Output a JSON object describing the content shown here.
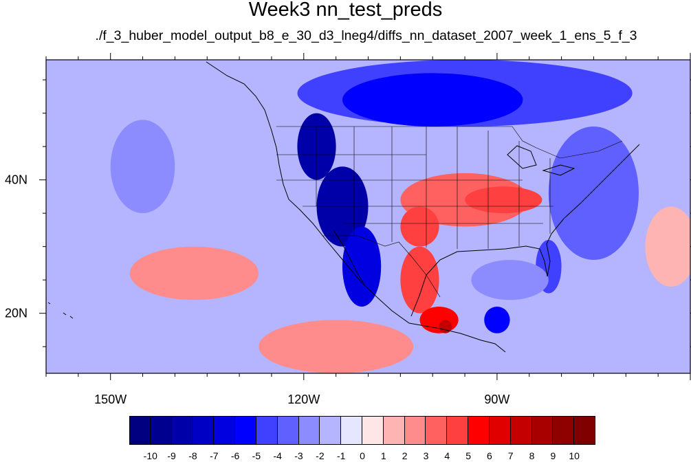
{
  "title": "Week3 nn_test_preds",
  "subtitle": "./f_3_huber_model_output_b8_e_30_d3_lneg4/diffs_nn_dataset_2007_week_1_ens_5_f_3",
  "map": {
    "projection": "cylindrical-equidistant",
    "lon_range": [
      -160,
      -60
    ],
    "lat_range": [
      11,
      58
    ],
    "background_level": -1,
    "x_tick_labels": [
      "150W",
      "120W",
      "90W"
    ],
    "y_tick_labels": [
      "40N",
      "20N"
    ],
    "regions": [
      {
        "name": "northeast-pacific-negative",
        "level": -2,
        "lon": -145,
        "lat": 42,
        "rx": 5,
        "ry": 7
      },
      {
        "name": "canada-negative",
        "level": -4,
        "lon": -95,
        "lat": 53,
        "rx": 26,
        "ry": 5
      },
      {
        "name": "hudson-negative",
        "level": -5,
        "lon": -100,
        "lat": 52,
        "rx": 14,
        "ry": 4
      },
      {
        "name": "east-coast-negative",
        "level": -3,
        "lon": -75,
        "lat": 38,
        "rx": 7,
        "ry": 10
      },
      {
        "name": "florida-negative",
        "level": -4,
        "lon": -82,
        "lat": 27,
        "rx": 2,
        "ry": 4
      },
      {
        "name": "gulf-negative",
        "level": -2,
        "lon": -88,
        "lat": 25,
        "rx": 6,
        "ry": 3
      },
      {
        "name": "caribbean-negative",
        "level": -5,
        "lon": -90,
        "lat": 19,
        "rx": 2,
        "ry": 2
      },
      {
        "name": "central-pacific-positive",
        "level": 2,
        "lon": -137,
        "lat": 26,
        "rx": 10,
        "ry": 4
      },
      {
        "name": "eastern-pacific-positive",
        "level": 2,
        "lon": -115,
        "lat": 15,
        "rx": 12,
        "ry": 4
      },
      {
        "name": "atlantic-positive",
        "level": 1,
        "lon": -63,
        "lat": 30,
        "rx": 4,
        "ry": 6
      },
      {
        "name": "southern-plains-positive",
        "level": 3,
        "lon": -95,
        "lat": 37,
        "rx": 10,
        "ry": 4
      },
      {
        "name": "ohio-valley-positive",
        "level": 4,
        "lon": -89,
        "lat": 37,
        "rx": 6,
        "ry": 2
      },
      {
        "name": "texas-positive",
        "level": 4,
        "lon": -102,
        "lat": 33,
        "rx": 3,
        "ry": 3
      },
      {
        "name": "mexico-positive",
        "level": 4,
        "lon": -102,
        "lat": 25,
        "rx": 3,
        "ry": 5
      },
      {
        "name": "southern-mexico-positive",
        "level": 5,
        "lon": -99,
        "lat": 19,
        "rx": 3,
        "ry": 2
      },
      {
        "name": "southern-mexico-max",
        "level": 7,
        "lon": -98,
        "lat": 18,
        "rx": 1,
        "ry": 1
      },
      {
        "name": "pacific-northwest-negative",
        "level": -8,
        "lon": -118,
        "lat": 45,
        "rx": 3,
        "ry": 5
      },
      {
        "name": "great-basin-negative",
        "level": -8,
        "lon": -114,
        "lat": 36,
        "rx": 4,
        "ry": 6
      },
      {
        "name": "baja-negative",
        "level": -6,
        "lon": -111,
        "lat": 27,
        "rx": 3,
        "ry": 6
      }
    ]
  },
  "colorbar": {
    "labels": [
      "-10",
      "-9",
      "-8",
      "-7",
      "-6",
      "-5",
      "-4",
      "-3",
      "-2",
      "-1",
      "0",
      "1",
      "2",
      "3",
      "4",
      "5",
      "6",
      "7",
      "8",
      "9",
      "10"
    ],
    "colors": [
      "#000080",
      "#00008f",
      "#0000a8",
      "#0000c4",
      "#0000e0",
      "#0000ff",
      "#4040ff",
      "#6060ff",
      "#8c8cff",
      "#b4b4ff",
      "#e6e6ff",
      "#ffe6e6",
      "#ffb4b4",
      "#ff8c8c",
      "#ff6060",
      "#ff4040",
      "#ff0000",
      "#e00000",
      "#c40000",
      "#a80000",
      "#8f0000",
      "#800000"
    ]
  }
}
